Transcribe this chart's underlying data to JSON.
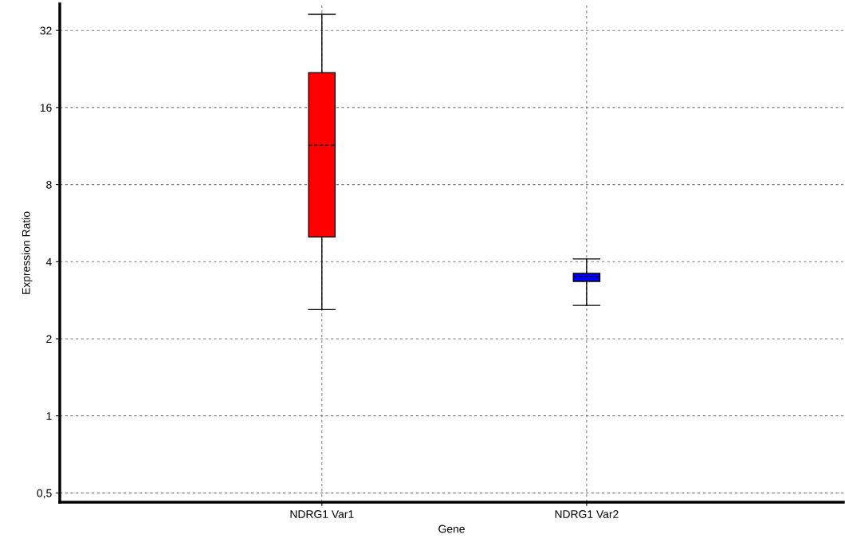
{
  "chart_data": {
    "type": "box",
    "xlabel": "Gene",
    "ylabel": "Expression Ratio",
    "categories": [
      "NDRG1 Var1",
      "NDRG1 Var2"
    ],
    "boxes": [
      {
        "low": 2.6,
        "q1": 5.0,
        "median": 11.4,
        "q3": 21.9,
        "high": 37
      },
      {
        "low": 2.7,
        "q1": 3.35,
        "median": 3.5,
        "q3": 3.6,
        "high": 4.1
      }
    ],
    "colors": [
      "#ff0000",
      "#0000ff"
    ],
    "log": "y",
    "ylim": [
      0.46,
      40.6
    ],
    "yticks": [
      {
        "value": 0.5,
        "label": "0,5"
      },
      1,
      2,
      4,
      8,
      16,
      32
    ],
    "grid": true
  }
}
